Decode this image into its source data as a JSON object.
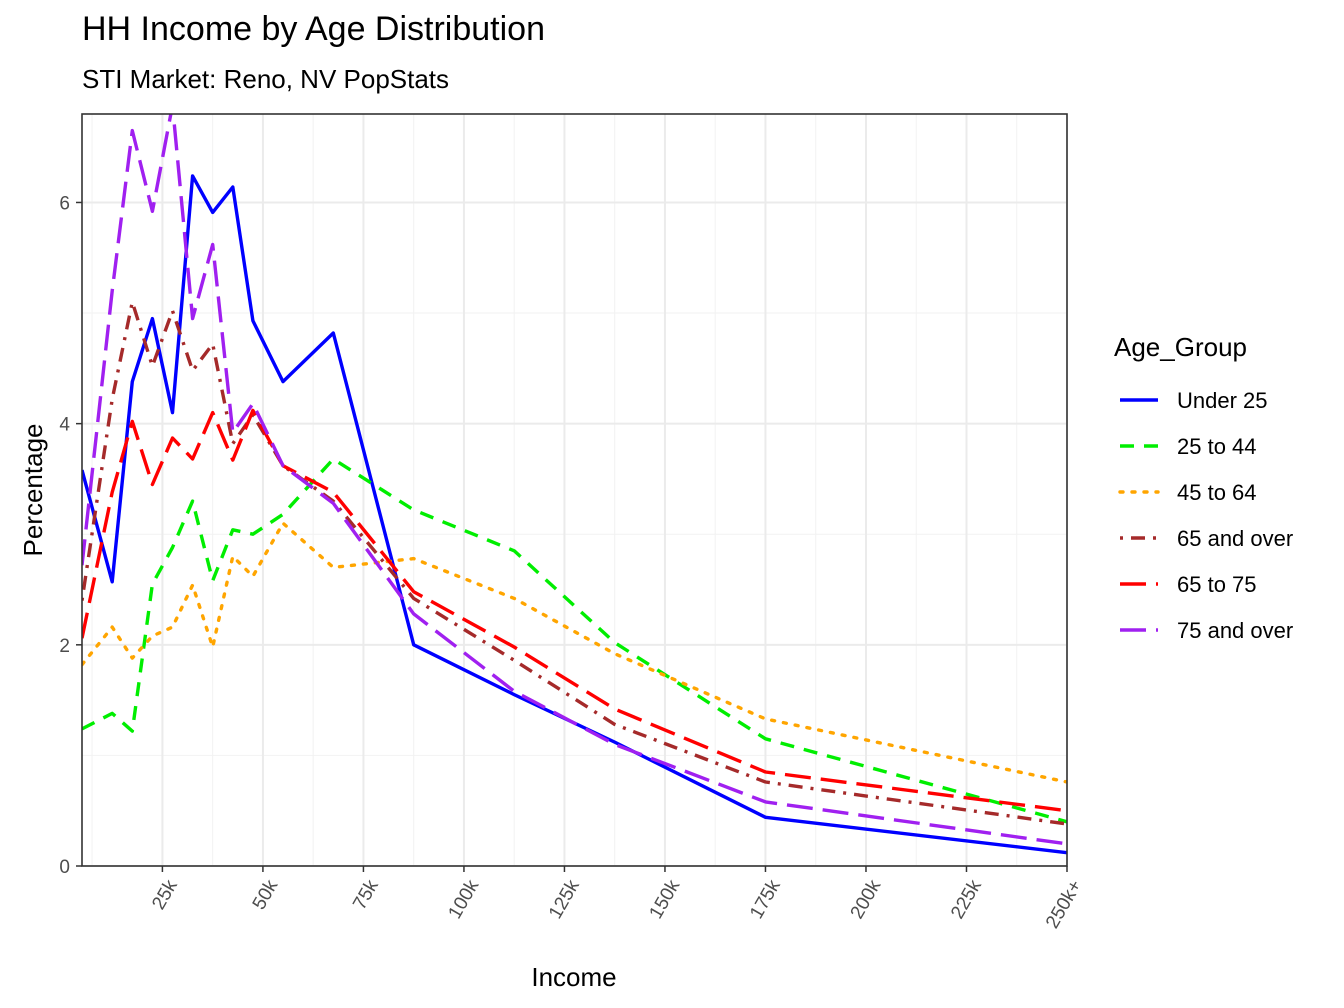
{
  "chart_data": {
    "type": "line",
    "title": "HH Income by Age Distribution",
    "subtitle": "STI Market: Reno, NV PopStats",
    "xlabel": "Income",
    "ylabel": "Percentage",
    "xlim": [
      5,
      250
    ],
    "ylim": [
      0,
      6.8
    ],
    "x_ticks": [
      {
        "value": 25,
        "label": "25k"
      },
      {
        "value": 50,
        "label": "50k"
      },
      {
        "value": 75,
        "label": "75k"
      },
      {
        "value": 100,
        "label": "100k"
      },
      {
        "value": 125,
        "label": "125k"
      },
      {
        "value": 150,
        "label": "150k"
      },
      {
        "value": 175,
        "label": "175k"
      },
      {
        "value": 200,
        "label": "200k"
      },
      {
        "value": 225,
        "label": "225k"
      },
      {
        "value": 250,
        "label": "250k+"
      }
    ],
    "y_ticks": [
      {
        "value": 0,
        "label": "0"
      },
      {
        "value": 2,
        "label": "2"
      },
      {
        "value": 4,
        "label": "4"
      },
      {
        "value": 6,
        "label": "6"
      }
    ],
    "grid": true,
    "legend_title": "Age_Group",
    "legend_position": "right",
    "x": [
      5,
      12.5,
      17.5,
      22.5,
      27.5,
      32.5,
      37.5,
      42.5,
      47.5,
      55,
      67.5,
      87.5,
      112.5,
      137.5,
      175,
      250
    ],
    "series": [
      {
        "name": "Under 25",
        "color": "#0000ff",
        "dash": "solid",
        "values": [
          3.58,
          2.57,
          4.38,
          4.95,
          4.1,
          6.24,
          5.91,
          6.14,
          4.93,
          4.38,
          4.82,
          2.0,
          1.55,
          1.12,
          0.44,
          0.12
        ]
      },
      {
        "name": "25 to 44",
        "color": "#00ee00",
        "dash": "dashed",
        "values": [
          1.24,
          1.38,
          1.22,
          2.55,
          2.88,
          3.3,
          2.58,
          3.04,
          3.0,
          3.18,
          3.68,
          3.22,
          2.85,
          2.02,
          1.15,
          0.4
        ]
      },
      {
        "name": "45 to 64",
        "color": "#ffa500",
        "dash": "dotted",
        "values": [
          1.82,
          2.16,
          1.88,
          2.08,
          2.16,
          2.54,
          1.98,
          2.8,
          2.62,
          3.1,
          2.7,
          2.78,
          2.42,
          1.92,
          1.33,
          0.76
        ]
      },
      {
        "name": "65 and over",
        "color": "#a52a2a",
        "dash": "dotdash",
        "values": [
          2.4,
          4.22,
          5.1,
          4.52,
          5.02,
          4.48,
          4.72,
          3.82,
          4.08,
          3.62,
          3.3,
          2.42,
          1.86,
          1.28,
          0.76,
          0.38
        ]
      },
      {
        "name": "65 to 75",
        "color": "#ff0000",
        "dash": "longdash",
        "values": [
          2.06,
          3.38,
          4.02,
          3.45,
          3.87,
          3.68,
          4.1,
          3.67,
          4.12,
          3.62,
          3.38,
          2.48,
          1.98,
          1.42,
          0.85,
          0.5
        ]
      },
      {
        "name": "75 and over",
        "color": "#a020f0",
        "dash": "longdash",
        "values": [
          2.72,
          5.2,
          6.65,
          5.92,
          6.88,
          4.95,
          5.62,
          3.92,
          4.18,
          3.62,
          3.28,
          2.28,
          1.58,
          1.1,
          0.58,
          0.2
        ]
      }
    ]
  }
}
